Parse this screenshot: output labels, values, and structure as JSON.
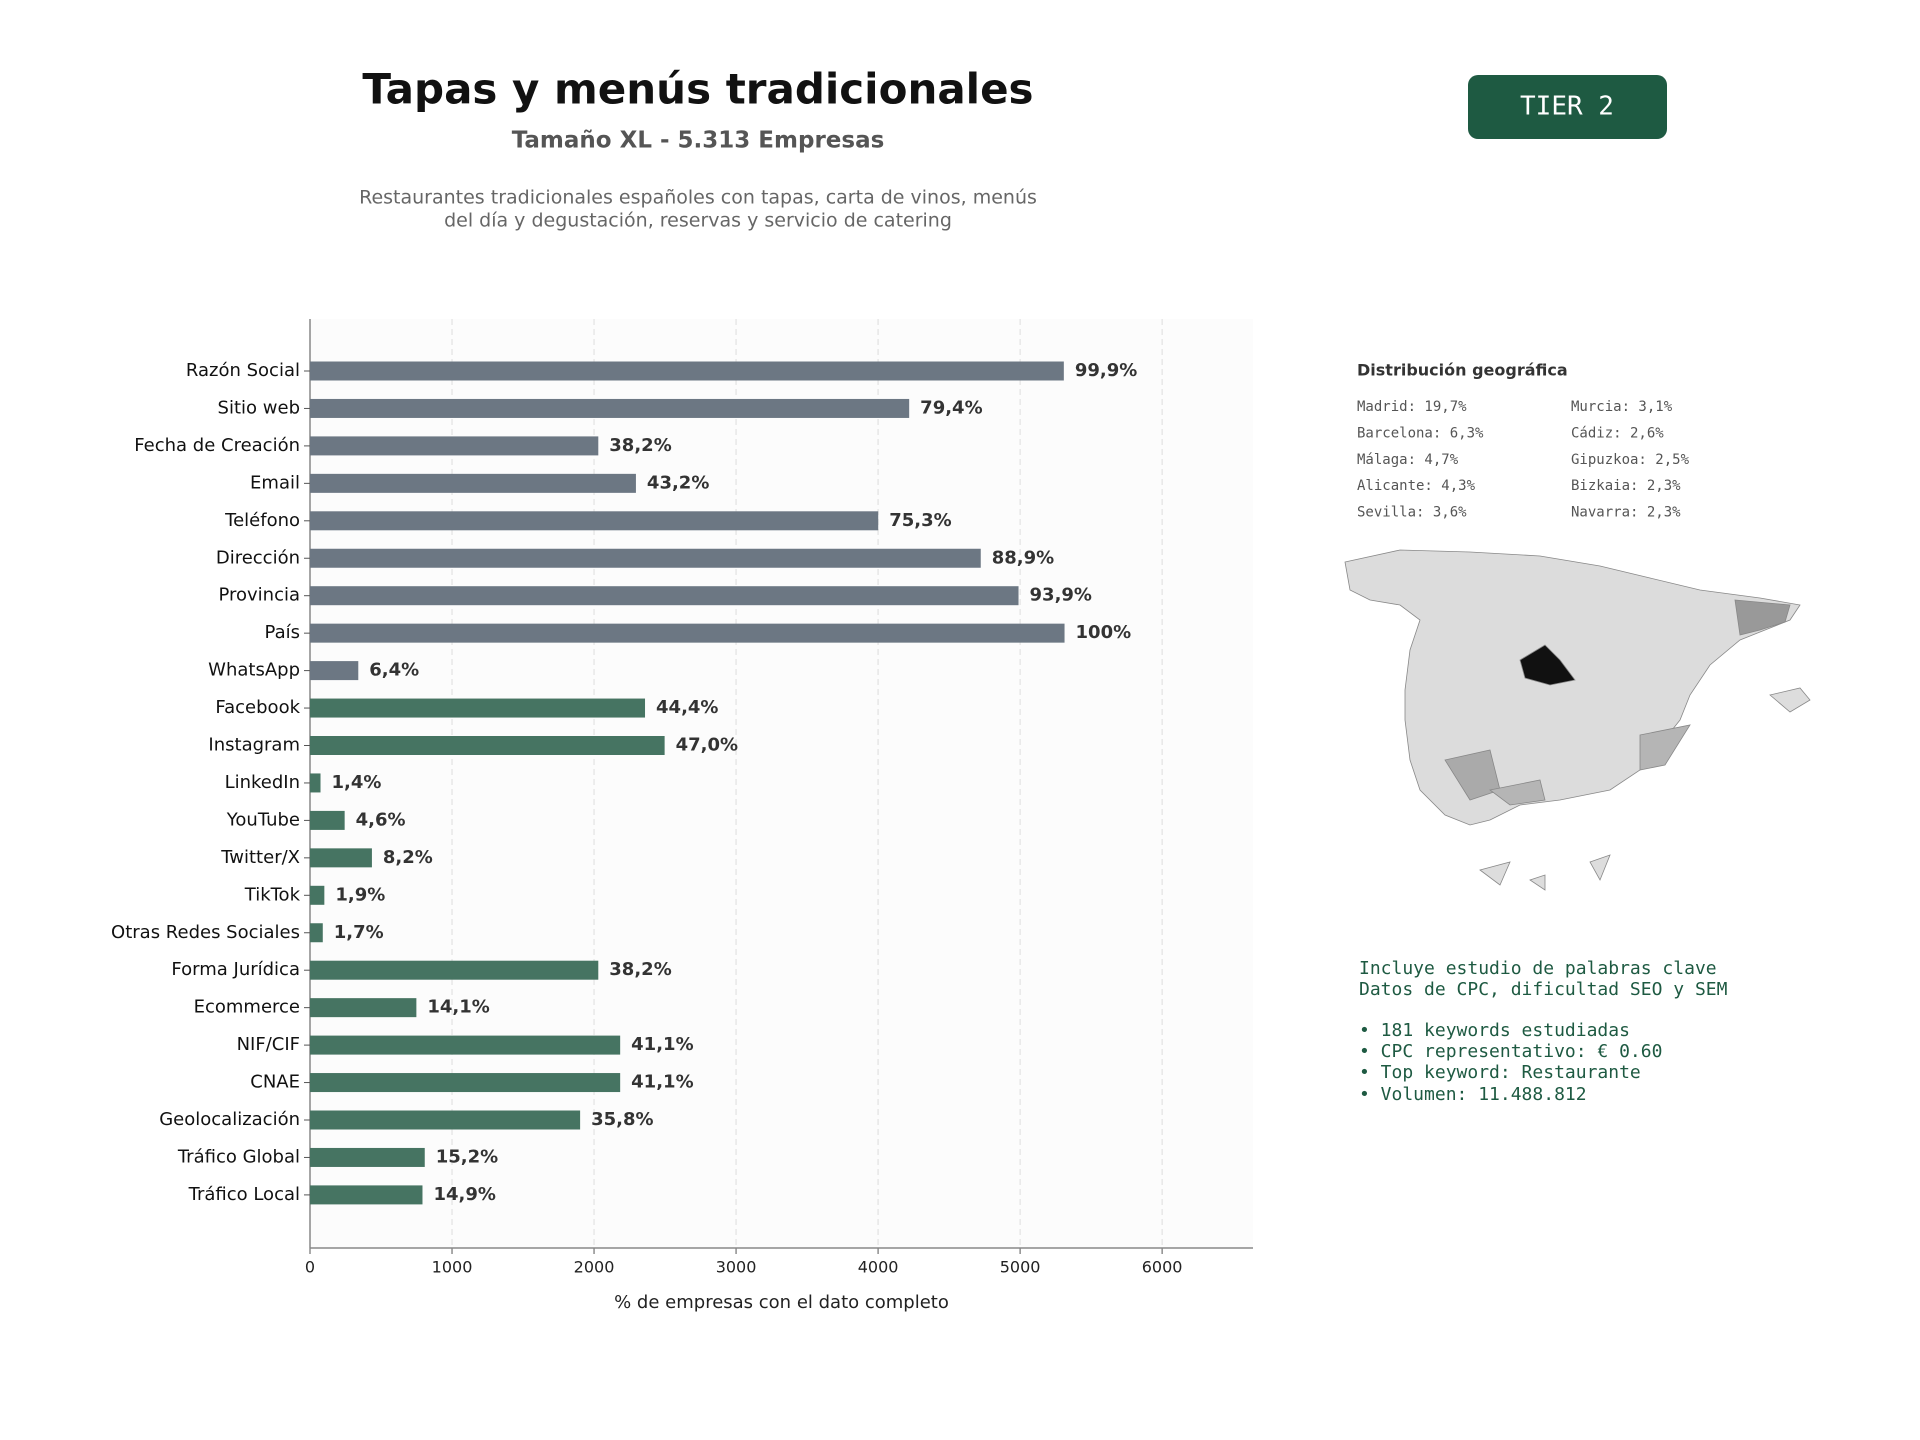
{
  "chart_data": {
    "type": "barh",
    "title": "Tapas y menús tradicionales",
    "subtitle": "Tamaño XL - 5.313 Empresas",
    "description": [
      "Restaurantes tradicionales españoles con tapas, carta de vinos, menús",
      "del día y degustación, reservas y servicio de catering"
    ],
    "xlabel": "% de empresas con el dato completo",
    "categories": [
      "Razón Social",
      "Sitio web",
      "Fecha de Creación",
      "Email",
      "Teléfono",
      "Dirección",
      "Provincia",
      "País",
      "WhatsApp",
      "Facebook",
      "Instagram",
      "LinkedIn",
      "YouTube",
      "Twitter/X",
      "TikTok",
      "Otras Redes Sociales",
      "Forma Jurídica",
      "Ecommerce",
      "NIF/CIF",
      "CNAE",
      "Geolocalización",
      "Tráfico Global",
      "Tráfico Local"
    ],
    "values": [
      5308,
      4219,
      2030,
      2295,
      4001,
      4723,
      4989,
      5313,
      340,
      2359,
      2497,
      74,
      244,
      436,
      101,
      90,
      2030,
      749,
      2184,
      2184,
      1902,
      808,
      792
    ],
    "value_labels": [
      "99,9%",
      "79,4%",
      "38,2%",
      "43,2%",
      "75,3%",
      "88,9%",
      "93,9%",
      "100%",
      "6,4%",
      "44,4%",
      "47,0%",
      "1,4%",
      "4,6%",
      "8,2%",
      "1,9%",
      "1,7%",
      "38,2%",
      "14,1%",
      "41,1%",
      "41,1%",
      "35,8%",
      "15,2%",
      "14,9%"
    ],
    "colors": [
      "#6c7783",
      "#6c7783",
      "#6c7783",
      "#6c7783",
      "#6c7783",
      "#6c7783",
      "#6c7783",
      "#6c7783",
      "#6c7783",
      "#467462",
      "#467462",
      "#467462",
      "#467462",
      "#467462",
      "#467462",
      "#467462",
      "#467462",
      "#467462",
      "#467462",
      "#467462",
      "#467462",
      "#467462",
      "#467462"
    ],
    "xlim": [
      0,
      6640
    ],
    "xticks": [
      0,
      1000,
      2000,
      3000,
      4000,
      5000,
      6000
    ],
    "grid": true
  },
  "badge": "TIER 2",
  "geo_distribution": {
    "title": "Distribución geográfica",
    "items": [
      "Madrid: 19,7%",
      "Barcelona: 6,3%",
      "Málaga: 4,7%",
      "Alicante: 4,3%",
      "Sevilla: 3,6%",
      "Murcia: 3,1%",
      "Cádiz: 2,6%",
      "Gipuzkoa: 2,5%",
      "Bizkaia: 2,3%",
      "Navarra: 2,3%"
    ]
  },
  "keywords": {
    "lines": [
      "Incluye estudio de palabras clave",
      "Datos de CPC, dificultad SEO y SEM",
      "• 181 keywords estudiadas",
      "• CPC representativo: € 0.60",
      "• Top keyword: Restaurante",
      "• Volumen: 11.488.812"
    ]
  }
}
